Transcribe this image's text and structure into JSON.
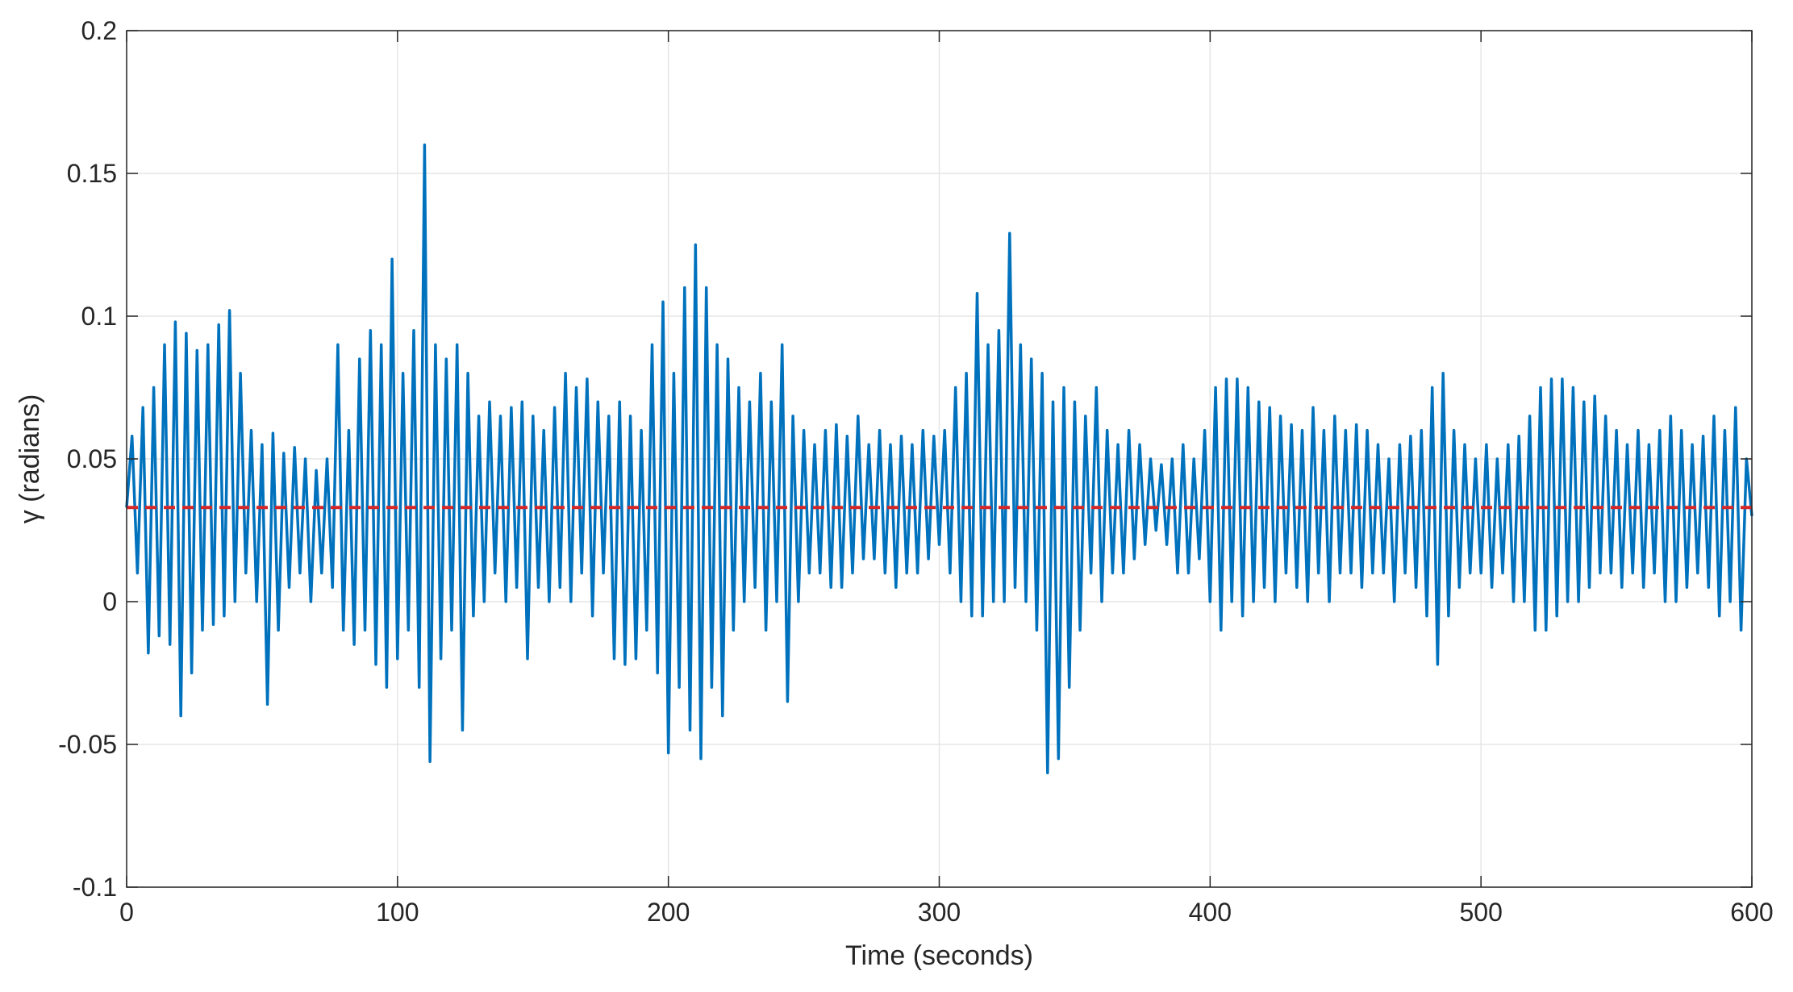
{
  "chart_data": {
    "type": "line",
    "xlabel": "Time (seconds)",
    "ylabel": "γ (radians)",
    "xlim": [
      0,
      600
    ],
    "ylim": [
      -0.1,
      0.2
    ],
    "x_ticks": [
      0,
      100,
      200,
      300,
      400,
      500,
      600
    ],
    "x_tick_labels": [
      "0",
      "100",
      "200",
      "300",
      "400",
      "500",
      "600"
    ],
    "y_ticks": [
      -0.1,
      -0.05,
      0,
      0.05,
      0.1,
      0.15,
      0.2
    ],
    "y_tick_labels": [
      "-0.1",
      "-0.05",
      "0",
      "0.05",
      "0.1",
      "0.15",
      "0.2"
    ],
    "grid": true,
    "series": [
      {
        "style": "solid",
        "color": "#0072BD",
        "mean": 0.033,
        "points": [
          [
            0,
            0.033
          ],
          [
            2,
            0.058
          ],
          [
            4,
            0.01
          ],
          [
            6,
            0.068
          ],
          [
            8,
            -0.018
          ],
          [
            10,
            0.075
          ],
          [
            12,
            -0.012
          ],
          [
            14,
            0.09
          ],
          [
            16,
            -0.015
          ],
          [
            18,
            0.098
          ],
          [
            20,
            -0.04
          ],
          [
            22,
            0.094
          ],
          [
            24,
            -0.025
          ],
          [
            26,
            0.088
          ],
          [
            28,
            -0.01
          ],
          [
            30,
            0.09
          ],
          [
            32,
            -0.008
          ],
          [
            34,
            0.097
          ],
          [
            36,
            -0.005
          ],
          [
            38,
            0.102
          ],
          [
            40,
            0.0
          ],
          [
            42,
            0.08
          ],
          [
            44,
            0.01
          ],
          [
            46,
            0.06
          ],
          [
            48,
            0.0
          ],
          [
            50,
            0.055
          ],
          [
            52,
            -0.036
          ],
          [
            54,
            0.059
          ],
          [
            56,
            -0.01
          ],
          [
            58,
            0.052
          ],
          [
            60,
            0.005
          ],
          [
            62,
            0.054
          ],
          [
            64,
            0.01
          ],
          [
            66,
            0.05
          ],
          [
            68,
            0.0
          ],
          [
            70,
            0.046
          ],
          [
            72,
            0.01
          ],
          [
            74,
            0.05
          ],
          [
            76,
            0.005
          ],
          [
            78,
            0.09
          ],
          [
            80,
            -0.01
          ],
          [
            82,
            0.06
          ],
          [
            84,
            -0.015
          ],
          [
            86,
            0.085
          ],
          [
            88,
            -0.01
          ],
          [
            90,
            0.095
          ],
          [
            92,
            -0.022
          ],
          [
            94,
            0.09
          ],
          [
            96,
            -0.03
          ],
          [
            98,
            0.12
          ],
          [
            100,
            -0.02
          ],
          [
            102,
            0.08
          ],
          [
            104,
            -0.01
          ],
          [
            106,
            0.095
          ],
          [
            108,
            -0.03
          ],
          [
            110,
            0.16
          ],
          [
            112,
            -0.056
          ],
          [
            114,
            0.09
          ],
          [
            116,
            -0.02
          ],
          [
            118,
            0.085
          ],
          [
            120,
            -0.01
          ],
          [
            122,
            0.09
          ],
          [
            124,
            -0.045
          ],
          [
            126,
            0.08
          ],
          [
            128,
            -0.005
          ],
          [
            130,
            0.065
          ],
          [
            132,
            0.0
          ],
          [
            134,
            0.07
          ],
          [
            136,
            0.01
          ],
          [
            138,
            0.065
          ],
          [
            140,
            0.0
          ],
          [
            142,
            0.068
          ],
          [
            144,
            0.005
          ],
          [
            146,
            0.07
          ],
          [
            148,
            -0.02
          ],
          [
            150,
            0.065
          ],
          [
            152,
            0.005
          ],
          [
            154,
            0.06
          ],
          [
            156,
            0.0
          ],
          [
            158,
            0.068
          ],
          [
            160,
            0.005
          ],
          [
            162,
            0.08
          ],
          [
            164,
            0.0
          ],
          [
            166,
            0.075
          ],
          [
            168,
            0.01
          ],
          [
            170,
            0.078
          ],
          [
            172,
            -0.005
          ],
          [
            174,
            0.07
          ],
          [
            176,
            0.01
          ],
          [
            178,
            0.065
          ],
          [
            180,
            -0.02
          ],
          [
            182,
            0.07
          ],
          [
            184,
            -0.022
          ],
          [
            186,
            0.065
          ],
          [
            188,
            -0.02
          ],
          [
            190,
            0.06
          ],
          [
            192,
            -0.01
          ],
          [
            194,
            0.09
          ],
          [
            196,
            -0.025
          ],
          [
            198,
            0.105
          ],
          [
            200,
            -0.053
          ],
          [
            202,
            0.08
          ],
          [
            204,
            -0.03
          ],
          [
            206,
            0.11
          ],
          [
            208,
            -0.045
          ],
          [
            210,
            0.125
          ],
          [
            212,
            -0.055
          ],
          [
            214,
            0.11
          ],
          [
            216,
            -0.03
          ],
          [
            218,
            0.09
          ],
          [
            220,
            -0.04
          ],
          [
            222,
            0.085
          ],
          [
            224,
            -0.01
          ],
          [
            226,
            0.075
          ],
          [
            228,
            0.0
          ],
          [
            230,
            0.07
          ],
          [
            232,
            0.005
          ],
          [
            234,
            0.08
          ],
          [
            236,
            -0.01
          ],
          [
            238,
            0.07
          ],
          [
            240,
            0.0
          ],
          [
            242,
            0.09
          ],
          [
            244,
            -0.035
          ],
          [
            246,
            0.065
          ],
          [
            248,
            0.0
          ],
          [
            250,
            0.06
          ],
          [
            252,
            0.01
          ],
          [
            254,
            0.055
          ],
          [
            256,
            0.01
          ],
          [
            258,
            0.06
          ],
          [
            260,
            0.005
          ],
          [
            262,
            0.062
          ],
          [
            264,
            0.005
          ],
          [
            266,
            0.058
          ],
          [
            268,
            0.01
          ],
          [
            270,
            0.065
          ],
          [
            272,
            0.015
          ],
          [
            274,
            0.055
          ],
          [
            276,
            0.015
          ],
          [
            278,
            0.06
          ],
          [
            280,
            0.01
          ],
          [
            282,
            0.055
          ],
          [
            284,
            0.005
          ],
          [
            286,
            0.058
          ],
          [
            288,
            0.01
          ],
          [
            290,
            0.055
          ],
          [
            292,
            0.01
          ],
          [
            294,
            0.06
          ],
          [
            296,
            0.015
          ],
          [
            298,
            0.058
          ],
          [
            300,
            0.02
          ],
          [
            302,
            0.06
          ],
          [
            304,
            0.01
          ],
          [
            306,
            0.075
          ],
          [
            308,
            0.0
          ],
          [
            310,
            0.08
          ],
          [
            312,
            -0.005
          ],
          [
            314,
            0.108
          ],
          [
            316,
            -0.005
          ],
          [
            318,
            0.09
          ],
          [
            320,
            0.0
          ],
          [
            322,
            0.095
          ],
          [
            324,
            0.0
          ],
          [
            326,
            0.129
          ],
          [
            328,
            0.005
          ],
          [
            330,
            0.09
          ],
          [
            332,
            0.0
          ],
          [
            334,
            0.085
          ],
          [
            336,
            -0.01
          ],
          [
            338,
            0.08
          ],
          [
            340,
            -0.06
          ],
          [
            342,
            0.07
          ],
          [
            344,
            -0.055
          ],
          [
            346,
            0.075
          ],
          [
            348,
            -0.03
          ],
          [
            350,
            0.07
          ],
          [
            352,
            -0.01
          ],
          [
            354,
            0.065
          ],
          [
            356,
            0.01
          ],
          [
            358,
            0.075
          ],
          [
            360,
            0.0
          ],
          [
            362,
            0.06
          ],
          [
            364,
            0.01
          ],
          [
            366,
            0.055
          ],
          [
            368,
            0.01
          ],
          [
            370,
            0.06
          ],
          [
            372,
            0.015
          ],
          [
            374,
            0.055
          ],
          [
            376,
            0.02
          ],
          [
            378,
            0.05
          ],
          [
            380,
            0.025
          ],
          [
            382,
            0.048
          ],
          [
            384,
            0.02
          ],
          [
            386,
            0.05
          ],
          [
            388,
            0.01
          ],
          [
            390,
            0.055
          ],
          [
            392,
            0.01
          ],
          [
            394,
            0.05
          ],
          [
            396,
            0.015
          ],
          [
            398,
            0.06
          ],
          [
            400,
            0.0
          ],
          [
            402,
            0.075
          ],
          [
            404,
            -0.01
          ],
          [
            406,
            0.078
          ],
          [
            408,
            0.0
          ],
          [
            410,
            0.078
          ],
          [
            412,
            -0.005
          ],
          [
            414,
            0.075
          ],
          [
            416,
            0.0
          ],
          [
            418,
            0.07
          ],
          [
            420,
            0.005
          ],
          [
            422,
            0.068
          ],
          [
            424,
            0.0
          ],
          [
            426,
            0.065
          ],
          [
            428,
            0.01
          ],
          [
            430,
            0.062
          ],
          [
            432,
            0.005
          ],
          [
            434,
            0.06
          ],
          [
            436,
            0.0
          ],
          [
            438,
            0.068
          ],
          [
            440,
            0.01
          ],
          [
            442,
            0.06
          ],
          [
            444,
            0.0
          ],
          [
            446,
            0.065
          ],
          [
            448,
            0.01
          ],
          [
            450,
            0.06
          ],
          [
            452,
            0.01
          ],
          [
            454,
            0.062
          ],
          [
            456,
            0.005
          ],
          [
            458,
            0.06
          ],
          [
            460,
            0.01
          ],
          [
            462,
            0.055
          ],
          [
            464,
            0.01
          ],
          [
            466,
            0.05
          ],
          [
            468,
            0.0
          ],
          [
            470,
            0.055
          ],
          [
            472,
            0.01
          ],
          [
            474,
            0.058
          ],
          [
            476,
            0.005
          ],
          [
            478,
            0.06
          ],
          [
            480,
            -0.005
          ],
          [
            482,
            0.075
          ],
          [
            484,
            -0.022
          ],
          [
            486,
            0.08
          ],
          [
            488,
            -0.005
          ],
          [
            490,
            0.06
          ],
          [
            492,
            0.005
          ],
          [
            494,
            0.055
          ],
          [
            496,
            0.01
          ],
          [
            498,
            0.05
          ],
          [
            500,
            0.01
          ],
          [
            502,
            0.055
          ],
          [
            504,
            0.005
          ],
          [
            506,
            0.05
          ],
          [
            508,
            0.01
          ],
          [
            510,
            0.055
          ],
          [
            512,
            0.0
          ],
          [
            514,
            0.058
          ],
          [
            516,
            0.0
          ],
          [
            518,
            0.065
          ],
          [
            520,
            -0.01
          ],
          [
            522,
            0.075
          ],
          [
            524,
            -0.01
          ],
          [
            526,
            0.078
          ],
          [
            528,
            -0.005
          ],
          [
            530,
            0.078
          ],
          [
            532,
            0.0
          ],
          [
            534,
            0.075
          ],
          [
            536,
            0.0
          ],
          [
            538,
            0.07
          ],
          [
            540,
            0.005
          ],
          [
            542,
            0.072
          ],
          [
            544,
            0.01
          ],
          [
            546,
            0.065
          ],
          [
            548,
            0.01
          ],
          [
            550,
            0.06
          ],
          [
            552,
            0.005
          ],
          [
            554,
            0.055
          ],
          [
            556,
            0.01
          ],
          [
            558,
            0.06
          ],
          [
            560,
            0.005
          ],
          [
            562,
            0.055
          ],
          [
            564,
            0.01
          ],
          [
            566,
            0.06
          ],
          [
            568,
            0.0
          ],
          [
            570,
            0.065
          ],
          [
            572,
            0.0
          ],
          [
            574,
            0.06
          ],
          [
            576,
            0.005
          ],
          [
            578,
            0.055
          ],
          [
            580,
            0.01
          ],
          [
            582,
            0.058
          ],
          [
            584,
            0.005
          ],
          [
            586,
            0.065
          ],
          [
            588,
            -0.005
          ],
          [
            590,
            0.06
          ],
          [
            592,
            0.0
          ],
          [
            594,
            0.068
          ],
          [
            596,
            -0.01
          ],
          [
            598,
            0.05
          ],
          [
            600,
            0.03
          ]
        ]
      },
      {
        "style": "dashed",
        "color": "#D62728",
        "points": [
          [
            0,
            0.033
          ],
          [
            600,
            0.033
          ]
        ]
      }
    ]
  }
}
